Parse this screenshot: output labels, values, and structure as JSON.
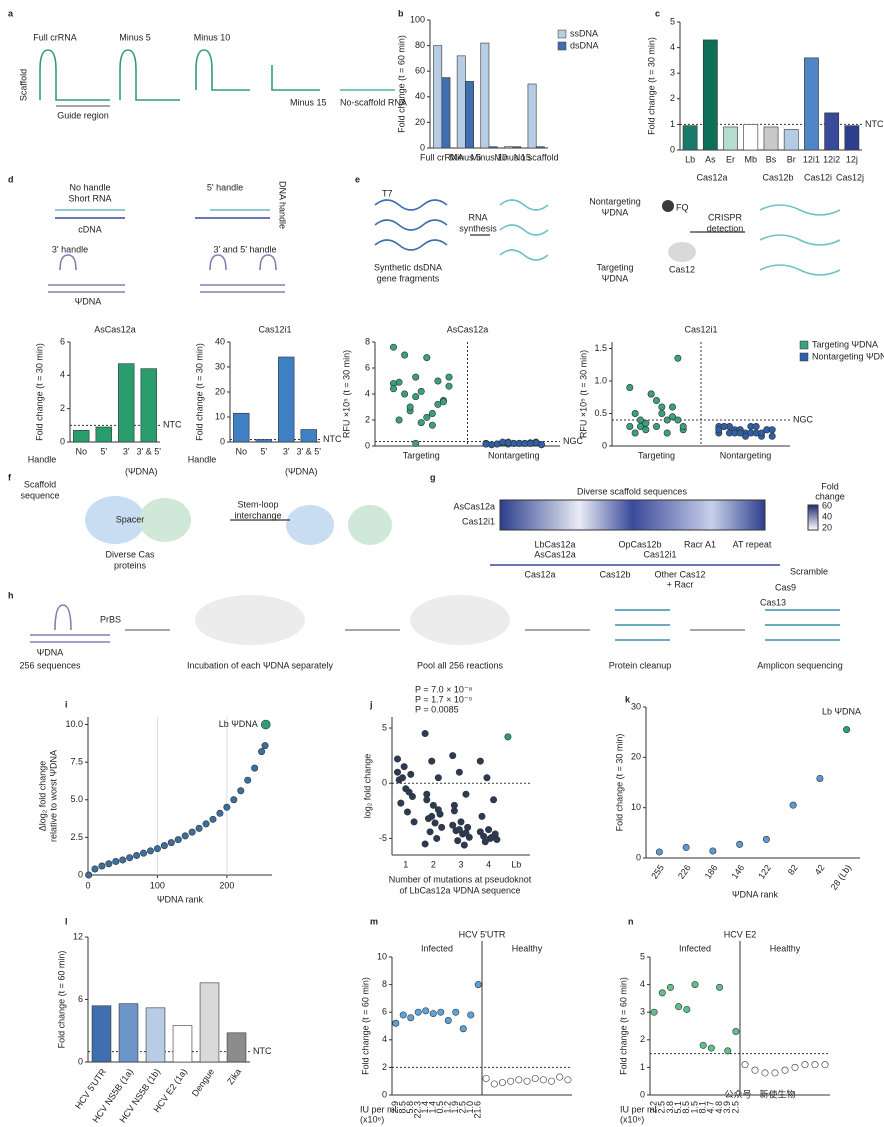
{
  "panel_labels": [
    "a",
    "b",
    "c",
    "d",
    "e",
    "f",
    "g",
    "h",
    "i",
    "j",
    "k",
    "l",
    "m",
    "n"
  ],
  "diagram_text": [
    "Scaffold",
    "Full crRNA",
    "Minus 5",
    "Minus 10",
    "Guide region",
    "Minus 15",
    "No-scaffold RNA",
    "No handle",
    "Short RNA",
    "cDNA",
    "5' handle",
    "DNA handle",
    "3' handle",
    "3' and 5' handle",
    "ΨDNA",
    "T7",
    "Synthetic dsDNA",
    "gene fragments",
    "RNA",
    "synthesis",
    "Nontargeting",
    "ΨDNA",
    "Targeting",
    "ΨDNA",
    "FQ",
    "Cas12",
    "CRISPR",
    "detection",
    "Scaffold",
    "sequence",
    "Spacer",
    "Stem-loop",
    "interchange",
    "Diverse Cas",
    "proteins",
    "Diverse scaffold sequences",
    "AsCas12a",
    "Cas12i1",
    "Fold",
    "change",
    "60",
    "40",
    "20",
    "LbCas12a",
    "AsCas12a",
    "OpCas12b",
    "Cas12i1",
    "Racr A1",
    "AT repeat",
    "Cas12a",
    "Cas12b",
    "Other Cas12",
    "+ Racr",
    "Scramble",
    "Cas9",
    "Cas13",
    "PrBS",
    "ΨDNA",
    "256 sequences",
    "Incubation of each ΨDNA separately",
    "Pool all 256 reactions",
    "Protein cleanup",
    "Amplicon sequencing",
    "公众号 · 新使生物"
  ],
  "chart_data": [
    {
      "type": "bar",
      "ylabel": "Fold change (t = 60 min)",
      "categories": [
        "Full crRNA",
        "Minus 5",
        "Minus 10",
        "Minus 15",
        "No scaffold"
      ],
      "series": [
        {
          "name": "ssDNA",
          "color": "#b7cde6",
          "values": [
            80,
            72,
            82,
            1,
            50
          ]
        },
        {
          "name": "dsDNA",
          "color": "#3f6fae",
          "values": [
            55,
            52,
            1,
            1,
            1
          ]
        }
      ],
      "ylim": [
        0,
        100
      ],
      "yticks": [
        0,
        20,
        40,
        60,
        80,
        100
      ]
    },
    {
      "type": "bar",
      "ylabel": "Fold change (t = 30 min)",
      "categories": [
        "Lb",
        "As",
        "Er",
        "Mb",
        "Bs",
        "Br",
        "12i1",
        "12i2",
        "12j"
      ],
      "values": [
        0.95,
        4.3,
        0.9,
        1.0,
        0.9,
        0.8,
        3.6,
        1.45,
        0.95
      ],
      "colors": [
        "#1a7a6a",
        "#0f6e57",
        "#b6dccf",
        "#ffffff",
        "#c8c8c8",
        "#b4cbe6",
        "#4f86c6",
        "#3a4a9a",
        "#2d3e8c"
      ],
      "ylim": [
        0,
        5
      ],
      "yticks": [
        0,
        1,
        2,
        3,
        4,
        5
      ],
      "reference_line": {
        "value": 1,
        "label": "NTC"
      },
      "group_labels": [
        "Cas12a",
        "Cas12b",
        "Cas12i",
        "Cas12j"
      ]
    },
    {
      "type": "bar",
      "title": "AsCas12a",
      "ylabel": "Fold change (t = 30 min)",
      "xlabel": "Handle",
      "categories": [
        "No",
        "5'",
        "3'",
        "3' & 5'"
      ],
      "values": [
        0.7,
        0.9,
        4.7,
        4.4
      ],
      "color": "#2a9d6e",
      "ylim": [
        0,
        6
      ],
      "yticks": [
        0,
        2,
        4,
        6
      ],
      "reference_line": {
        "value": 1,
        "label": "NTC"
      },
      "annotations": [
        "(ΨDNA)"
      ]
    },
    {
      "type": "bar",
      "title": "Cas12i1",
      "ylabel": "Fold change (t = 30 min)",
      "xlabel": "Handle",
      "categories": [
        "No",
        "5'",
        "3'",
        "3' & 5'"
      ],
      "values": [
        11.5,
        1,
        34,
        5
      ],
      "color": "#3f7fc4",
      "ylim": [
        0,
        40
      ],
      "yticks": [
        0,
        10,
        20,
        30,
        40
      ],
      "reference_line": {
        "value": 1,
        "label": "NTC"
      },
      "annotations": [
        "(ΨDNA)"
      ]
    },
    {
      "type": "strip",
      "title": "AsCas12a",
      "ylabel": "RFU ×10⁵ (t = 30 min)",
      "categories": [
        "Targeting",
        "Nontargeting"
      ],
      "series": [
        {
          "color": "#3aa17e",
          "values": [
            7.6,
            5.3,
            5.0,
            4.9,
            4.2,
            3.5,
            7.0,
            6.8,
            4.6,
            2.7,
            2.5,
            4.8,
            3.8,
            3.2,
            2.0,
            1.8,
            3.4,
            4.0,
            2.2,
            5.3,
            3.0,
            1.6,
            4.4,
            0.2
          ]
        },
        {
          "color": "#2f5fa8",
          "values": [
            0.2,
            0.15,
            0.25,
            0.1,
            0.2,
            0.3,
            0.15,
            0.2,
            0.1,
            0.25,
            0.2,
            0.15,
            0.3,
            0.2,
            0.1,
            0.2,
            0.25,
            0.15,
            0.2,
            0.1,
            0.3,
            0.2,
            0.15,
            0.25,
            0.2
          ]
        }
      ],
      "ylim": [
        0,
        8
      ],
      "yticks": [
        0,
        2,
        4,
        6,
        8
      ],
      "reference_line": {
        "value": 0.35,
        "label": "NGC"
      }
    },
    {
      "type": "strip",
      "title": "Cas12i1",
      "ylabel": "RFU ×10⁵ (t = 30 min)",
      "categories": [
        "Targeting",
        "Nontargeting"
      ],
      "series": [
        {
          "name": "Targeting ΨDNA",
          "color": "#3aa17e",
          "values": [
            0.9,
            0.8,
            0.6,
            0.5,
            0.7,
            0.4,
            0.3,
            0.5,
            0.25,
            0.35,
            0.4,
            0.3,
            0.8,
            0.45,
            0.2,
            0.3,
            1.35,
            0.4,
            0.6,
            0.3,
            0.25,
            0.2
          ]
        },
        {
          "name": "Nontargeting ΨDNA",
          "color": "#2f5fa8",
          "values": [
            0.2,
            0.25,
            0.15,
            0.3,
            0.2,
            0.25,
            0.3,
            0.2,
            0.15,
            0.25,
            0.2,
            0.3,
            0.25,
            0.2,
            0.3,
            0.15,
            0.25,
            0.2,
            0.3,
            0.25,
            0.2,
            0.3,
            0.25,
            0.2
          ]
        }
      ],
      "ylim": [
        0,
        1.6
      ],
      "yticks": [
        0,
        0.5,
        {
          "value": 1,
          "label": "1.0"
        },
        1.5
      ],
      "reference_line": {
        "value": 0.4,
        "label": "NGC"
      }
    },
    {
      "type": "scatter",
      "xlabel": "ΨDNA rank",
      "ylabel": [
        "Δlog₂ fold change",
        "relative to worst ΨDNA"
      ],
      "series": [
        {
          "color": "#3b6f9e",
          "x": [
            1,
            10,
            20,
            30,
            40,
            50,
            60,
            70,
            80,
            90,
            100,
            110,
            120,
            130,
            140,
            150,
            160,
            170,
            180,
            190,
            200,
            210,
            220,
            230,
            240,
            250,
            255
          ],
          "values": [
            0,
            0.4,
            0.6,
            0.75,
            0.9,
            1.0,
            1.15,
            1.3,
            1.45,
            1.6,
            1.75,
            1.95,
            2.15,
            2.35,
            2.6,
            2.85,
            3.1,
            3.4,
            3.7,
            4.1,
            4.5,
            5.0,
            5.6,
            6.3,
            7.1,
            8.2,
            8.6
          ]
        },
        {
          "name": "Lb ΨDNA",
          "color": "#2e9e7a",
          "x": [
            256
          ],
          "values": [
            10
          ]
        }
      ],
      "xlim": [
        0,
        265
      ],
      "xticks": [
        0,
        100,
        200
      ],
      "ylim": [
        0,
        10.5
      ],
      "yticks": [
        0,
        2.5,
        {
          "value": 5,
          "label": "5.0"
        },
        7.5,
        {
          "value": 10,
          "label": "10.0"
        }
      ]
    },
    {
      "type": "strip",
      "ylabel": "log₂ fold change",
      "xlabel": [
        "Number of mutations at pseudoknot",
        "of LbCas12a ΨDNA sequence"
      ],
      "categories": [
        "1",
        "2",
        "3",
        "4",
        "Lb"
      ],
      "values": [
        [
          2.2,
          1.5,
          0.8,
          0.3,
          -0.5,
          -1.2,
          -1.8,
          -2.6,
          -3.5,
          0.5,
          -0.8,
          1.0
        ],
        [
          4.5,
          2.0,
          0.5,
          -1.0,
          -2.0,
          -2.8,
          -3.2,
          -3.6,
          -4.0,
          -4.4,
          -5.0,
          -5.5,
          -3.0,
          -2.4,
          -1.5
        ],
        [
          2.5,
          1.0,
          -1.0,
          -2.5,
          -3.5,
          -4.0,
          -4.3,
          -4.6,
          -4.9,
          -5.2,
          -5.6,
          -3.8,
          -4.2,
          -4.5,
          -2.0
        ],
        [
          2.0,
          0.5,
          -1.5,
          -3.0,
          -4.2,
          -4.6,
          -4.8,
          -5.0,
          -5.1,
          -5.3,
          -4.9,
          -4.4
        ],
        [
          4.2
        ]
      ],
      "colors": [
        "#2b3a55",
        "#2b3a55",
        "#2b3a55",
        "#2b3a55",
        "#2e9e7a"
      ],
      "ylim": [
        -6.5,
        6
      ],
      "yticks": [
        -5,
        0,
        5
      ],
      "reference_line": {
        "value": 0
      },
      "annotations": [
        "P = 0.0085",
        "P = 1.7 × 10⁻⁵",
        "P = 7.0 × 10⁻⁸"
      ]
    },
    {
      "type": "points",
      "ylabel": "Fold change (t = 30 min)",
      "xlabel": "ΨDNA rank",
      "categories": [
        "255",
        "226",
        "186",
        "146",
        "122",
        "82",
        "42",
        "28 (Lb)"
      ],
      "values": [
        1.2,
        2.1,
        1.4,
        2.7,
        3.7,
        10.5,
        15.8,
        25.5
      ],
      "colors": [
        "#5b9bd5",
        "#5b9bd5",
        "#5b9bd5",
        "#5b9bd5",
        "#5b9bd5",
        "#5b9bd5",
        "#5b9bd5",
        "#2e9e7a"
      ],
      "ylim": [
        0,
        30
      ],
      "yticks": [
        0,
        10,
        20,
        30
      ],
      "annotations": [
        "Lb ΨDNA"
      ]
    },
    {
      "type": "bar",
      "ylabel": "Fold change (t = 60 min)",
      "categories": [
        "HCV 5'UTR",
        "HCV NS5B (1a)",
        "HCV NS5B (1b)",
        "HCV E2 (1a)",
        "Dengue",
        "Zika"
      ],
      "values": [
        5.4,
        5.6,
        5.2,
        3.5,
        7.6,
        2.8
      ],
      "colors": [
        "#3f6fae",
        "#6d95c8",
        "#b7cde6",
        "#ffffff",
        "#d9d9d9",
        "#8c8c8c"
      ],
      "ylim": [
        0,
        12
      ],
      "yticks": [
        0,
        6,
        12
      ],
      "reference_line": {
        "value": 1,
        "label": "NTC"
      }
    },
    {
      "type": "strip",
      "title": "HCV 5'UTR",
      "ylabel": "Fold change (t = 60 min)",
      "categories": [
        "Infected",
        "Healthy"
      ],
      "values": [
        [
          5.2,
          5.8,
          5.6,
          6.0,
          6.1,
          5.9,
          6.0,
          5.4,
          6.0,
          4.8,
          5.8,
          8.0
        ],
        [
          1.2,
          0.8,
          0.9,
          1.0,
          1.1,
          1.0,
          1.2,
          1.1,
          1.0,
          1.3,
          1.1
        ]
      ],
      "colors": [
        "#5ba3d9",
        "#ffffff"
      ],
      "ylim": [
        0,
        10
      ],
      "yticks": [
        0,
        2,
        4,
        6,
        8,
        10
      ],
      "reference_line": {
        "value": 2
      },
      "x_labels": [
        "2.9",
        "8.5",
        "5.8",
        "22.3",
        "1.4",
        "1.4",
        "0.5",
        "1.2",
        "1.9",
        "2.5",
        "1.0",
        "21.6"
      ],
      "annotations": [
        "IU per ml",
        "(x10⁶)"
      ]
    },
    {
      "type": "strip",
      "title": "HCV E2",
      "ylabel": "Fold change (t = 60 min)",
      "categories": [
        "Infected",
        "Healthy"
      ],
      "values": [
        [
          3.0,
          3.7,
          3.9,
          3.2,
          3.1,
          4.0,
          1.8,
          1.7,
          3.9,
          1.6,
          2.3
        ],
        [
          1.1,
          0.9,
          0.8,
          0.8,
          0.9,
          1.0,
          1.1,
          1.1,
          1.1
        ]
      ],
      "colors": [
        "#5cc28a",
        "#ffffff"
      ],
      "ylim": [
        0,
        5
      ],
      "yticks": [
        0,
        1,
        2,
        3,
        4,
        5
      ],
      "reference_line": {
        "value": 1.5
      },
      "x_labels": [
        "2.2",
        "2.5",
        "3.8",
        "5.1",
        "8.5",
        "1.5",
        "8.1",
        "4.7",
        "4.8",
        "3.9",
        "2.5"
      ],
      "annotations": [
        "IU per ml",
        "(x10⁶)"
      ]
    }
  ]
}
